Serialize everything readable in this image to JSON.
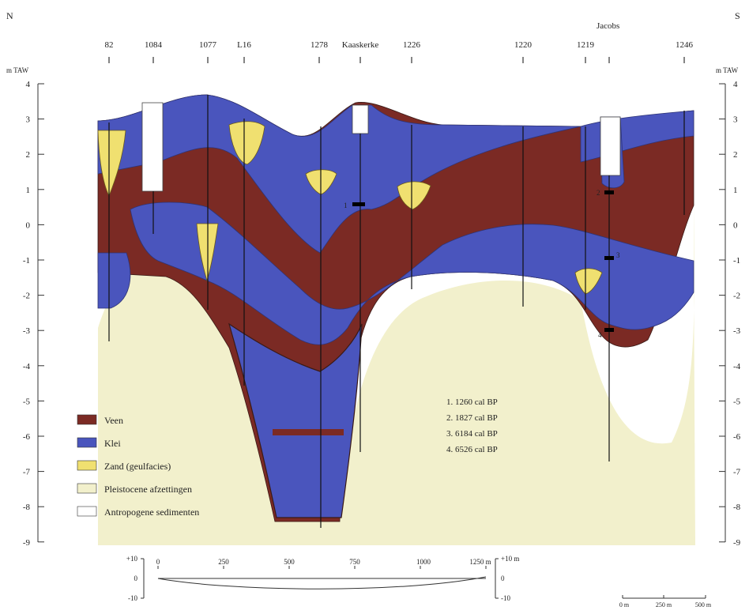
{
  "header": {
    "north": "N",
    "south": "S",
    "site_label": "Jacobs"
  },
  "axis": {
    "unit_left": "m TAW",
    "unit_right": "m TAW",
    "ticks": [
      "4",
      "3",
      "2",
      "1",
      "0",
      "-1",
      "-2",
      "-3",
      "-4",
      "-5",
      "-6",
      "-7",
      "-8",
      "-9"
    ]
  },
  "boreholes": [
    "82",
    "1084",
    "1077",
    "L16",
    "1278",
    "Kaaskerke",
    "1226",
    "1220",
    "1219",
    "1246"
  ],
  "dating_points": [
    "1",
    "2",
    "3",
    "4"
  ],
  "dates": [
    "1. 1260 cal BP",
    "2. 1827 cal BP",
    "3. 6184 cal BP",
    "4. 6526 cal BP"
  ],
  "legend": [
    {
      "label": "Veen",
      "color": "#7b2a24"
    },
    {
      "label": "Klei",
      "color": "#4a55bd"
    },
    {
      "label": "Zand (geulfacies)",
      "color": "#f0e070"
    },
    {
      "label": "Pleistocene afzettingen",
      "color": "#f2f0cc"
    },
    {
      "label": "Antropogene sedimenten",
      "color": "#ffffff"
    }
  ],
  "profile": {
    "x_ticks": [
      "0",
      "250",
      "500",
      "750",
      "1000",
      "1250 m"
    ],
    "y_left": [
      "+10",
      "0",
      "-10"
    ],
    "y_right": [
      "+10 m",
      "0",
      "-10"
    ]
  },
  "scale_bar": [
    "0 m",
    "250 m",
    "500 m"
  ]
}
